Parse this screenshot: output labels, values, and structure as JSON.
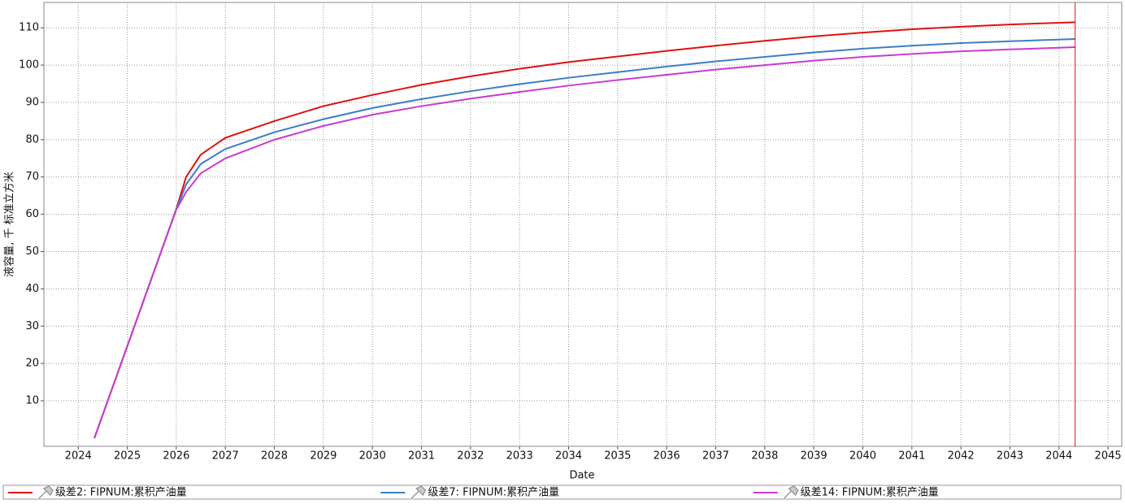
{
  "chart_data": {
    "type": "line",
    "x_label": "Date",
    "y_label": "液容量, 千 标准立方米",
    "x": [
      2024.33,
      2025.99,
      2026.2,
      2026.5,
      2027,
      2028,
      2029,
      2030,
      2031,
      2032,
      2033,
      2034,
      2035,
      2036,
      2037,
      2038,
      2039,
      2040,
      2041,
      2042,
      2043,
      2044.33
    ],
    "series": [
      {
        "name": "级差2: FIPNUM:累积产油量",
        "color": "#e01010",
        "values": [
          0,
          61,
          70,
          76,
          80.5,
          85,
          89,
          92,
          94.7,
          97,
          99,
          100.8,
          102.3,
          103.8,
          105.2,
          106.5,
          107.7,
          108.7,
          109.6,
          110.3,
          110.9,
          111.5
        ]
      },
      {
        "name": "级差7: FIPNUM:累积产油量",
        "color": "#3a7fc4",
        "values": [
          0,
          61,
          68,
          73.5,
          77.5,
          82,
          85.5,
          88.5,
          90.9,
          93,
          94.9,
          96.6,
          98.1,
          99.6,
          101,
          102.2,
          103.4,
          104.4,
          105.2,
          105.9,
          106.4,
          107
        ]
      },
      {
        "name": "级差14: FIPNUM:累积产油量",
        "color": "#c83cd0",
        "values": [
          0,
          61,
          66,
          71,
          75,
          80,
          83.7,
          86.7,
          89,
          91,
          92.8,
          94.5,
          96,
          97.4,
          98.8,
          100,
          101.2,
          102.2,
          103,
          103.7,
          104.2,
          104.8
        ]
      }
    ],
    "xlim": [
      2023.3,
      2045.28
    ],
    "xticks": [
      2024,
      2025,
      2026,
      2027,
      2028,
      2029,
      2030,
      2031,
      2032,
      2033,
      2034,
      2035,
      2036,
      2037,
      2038,
      2039,
      2040,
      2041,
      2042,
      2043,
      2044,
      2045
    ],
    "ylim": [
      -2.2,
      116.8
    ],
    "yticks": [
      10,
      20,
      30,
      40,
      50,
      60,
      70,
      80,
      90,
      100,
      110
    ],
    "grid": true,
    "vline": {
      "x": 2044.33,
      "color": "#e01010"
    },
    "legend": "bottom"
  }
}
